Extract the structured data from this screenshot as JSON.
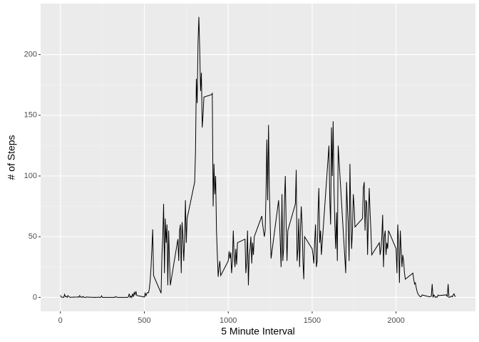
{
  "chart_data": {
    "type": "line",
    "x_label": "5 Minute Interval",
    "y_label": "# of Steps",
    "x": [
      0,
      5,
      10,
      15,
      20,
      25,
      30,
      35,
      40,
      45,
      50,
      55,
      100,
      105,
      110,
      115,
      120,
      125,
      130,
      135,
      140,
      145,
      150,
      155,
      200,
      205,
      210,
      215,
      220,
      225,
      230,
      235,
      240,
      245,
      250,
      255,
      300,
      305,
      310,
      315,
      320,
      325,
      330,
      335,
      340,
      345,
      350,
      355,
      400,
      405,
      410,
      415,
      420,
      425,
      430,
      435,
      440,
      445,
      450,
      455,
      500,
      505,
      510,
      515,
      520,
      525,
      530,
      535,
      540,
      545,
      550,
      555,
      600,
      605,
      610,
      615,
      620,
      625,
      630,
      635,
      640,
      645,
      650,
      655,
      700,
      705,
      710,
      715,
      720,
      725,
      730,
      735,
      740,
      745,
      750,
      755,
      800,
      805,
      810,
      815,
      820,
      825,
      830,
      835,
      840,
      845,
      850,
      855,
      900,
      905,
      910,
      915,
      920,
      925,
      930,
      935,
      940,
      945,
      950,
      955,
      1000,
      1005,
      1010,
      1015,
      1020,
      1025,
      1030,
      1035,
      1040,
      1045,
      1050,
      1055,
      1100,
      1105,
      1110,
      1115,
      1120,
      1125,
      1130,
      1135,
      1140,
      1145,
      1150,
      1155,
      1200,
      1205,
      1210,
      1215,
      1220,
      1225,
      1230,
      1235,
      1240,
      1245,
      1250,
      1255,
      1300,
      1305,
      1310,
      1315,
      1320,
      1325,
      1330,
      1335,
      1340,
      1345,
      1350,
      1355,
      1400,
      1405,
      1410,
      1415,
      1420,
      1425,
      1430,
      1435,
      1440,
      1445,
      1450,
      1455,
      1500,
      1505,
      1510,
      1515,
      1520,
      1525,
      1530,
      1535,
      1540,
      1545,
      1550,
      1555,
      1600,
      1605,
      1610,
      1615,
      1620,
      1625,
      1630,
      1635,
      1640,
      1645,
      1650,
      1655,
      1700,
      1705,
      1710,
      1715,
      1720,
      1725,
      1730,
      1735,
      1740,
      1745,
      1750,
      1755,
      1800,
      1805,
      1810,
      1815,
      1820,
      1825,
      1830,
      1835,
      1840,
      1845,
      1850,
      1855,
      1900,
      1905,
      1910,
      1915,
      1920,
      1925,
      1930,
      1935,
      1940,
      1945,
      1950,
      1955,
      2000,
      2005,
      2010,
      2015,
      2020,
      2025,
      2030,
      2035,
      2040,
      2045,
      2050,
      2055,
      2100,
      2105,
      2110,
      2115,
      2120,
      2125,
      2130,
      2135,
      2140,
      2145,
      2150,
      2155,
      2200,
      2205,
      2210,
      2215,
      2220,
      2225,
      2230,
      2235,
      2240,
      2245,
      2250,
      2255,
      2300,
      2305,
      2310,
      2315,
      2320,
      2325,
      2330,
      2335,
      2340,
      2345,
      2350,
      2355
    ],
    "values": [
      1.7,
      0.3,
      0.1,
      0.2,
      0,
      2.5,
      0.5,
      0.9,
      0,
      1.5,
      0.8,
      0.1,
      0.3,
      0.5,
      0,
      1.5,
      0.2,
      0.4,
      0,
      0.8,
      0.1,
      0,
      0,
      0.3,
      0,
      0.1,
      0,
      0,
      0.1,
      0.3,
      0,
      0,
      0,
      1.3,
      0,
      0,
      0,
      0,
      0,
      0,
      0.1,
      0,
      0.7,
      0.2,
      0,
      0,
      0,
      0,
      0,
      0.4,
      3,
      0,
      1.1,
      0,
      3,
      0.5,
      4.1,
      2.3,
      5,
      1.6,
      0.3,
      3.5,
      1.3,
      3.3,
      4,
      3.8,
      7,
      14,
      25,
      40,
      56,
      18,
      3.5,
      35,
      50,
      77,
      20,
      65,
      45,
      60,
      10,
      55,
      30,
      10,
      48,
      30,
      55,
      60,
      20,
      62,
      50,
      30,
      48,
      80,
      45,
      65,
      95,
      120,
      180,
      160,
      210,
      231,
      205,
      170,
      185,
      140,
      150,
      165,
      167,
      168,
      75,
      110,
      85,
      100,
      55,
      35,
      17,
      25,
      30,
      18,
      30,
      38,
      32,
      37,
      20,
      30,
      55,
      35,
      25,
      40,
      27,
      45,
      48,
      20,
      30,
      55,
      10,
      35,
      40,
      50,
      28,
      45,
      35,
      50,
      67,
      60,
      55,
      50,
      55,
      85,
      130,
      80,
      142,
      90,
      60,
      32,
      80,
      65,
      45,
      25,
      85,
      30,
      40,
      80,
      100,
      60,
      30,
      55,
      77,
      105,
      30,
      40,
      65,
      25,
      55,
      75,
      60,
      30,
      15,
      50,
      40,
      35,
      28,
      46,
      60,
      25,
      30,
      70,
      90,
      45,
      55,
      35,
      125,
      80,
      60,
      140,
      100,
      145,
      90,
      60,
      40,
      70,
      30,
      125,
      20,
      95,
      75,
      60,
      30,
      110,
      70,
      40,
      55,
      85,
      75,
      58,
      65,
      90,
      95,
      55,
      80,
      78,
      35,
      65,
      90,
      70,
      55,
      35,
      45,
      35,
      40,
      50,
      68,
      25,
      50,
      55,
      35,
      45,
      40,
      55,
      40,
      20,
      60,
      45,
      12,
      55,
      40,
      25,
      35,
      30,
      20,
      15,
      20,
      15,
      11,
      12,
      8,
      5,
      3,
      2,
      1,
      0.5,
      0.7,
      2,
      0.5,
      0.8,
      1,
      11,
      0,
      2,
      1,
      0,
      0.5,
      0.2,
      2,
      1.5,
      2.1,
      0.5,
      11,
      0,
      0.2,
      0.5,
      1,
      0.5,
      2,
      3,
      1,
      1
    ],
    "color": "#000000",
    "xlim": [
      -117.75,
      2472.75
    ],
    "xticks": [
      0,
      500,
      1000,
      1500,
      2000
    ],
    "ylim": [
      -11.5,
      242
    ],
    "yticks": [
      0,
      50,
      100,
      150,
      200
    ],
    "grid": true
  }
}
